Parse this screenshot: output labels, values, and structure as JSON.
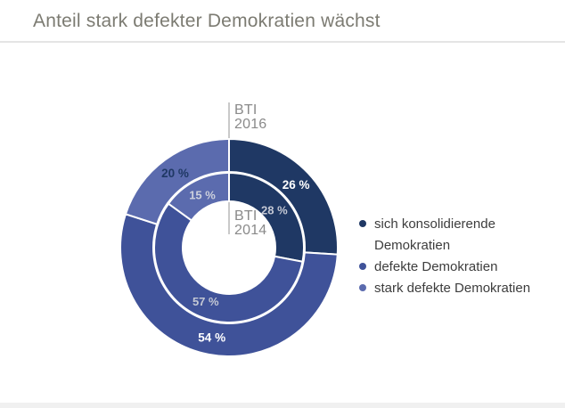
{
  "title": "Anteil stark defekter Demokratien wächst",
  "chart_data": {
    "type": "pie",
    "subtype": "double-donut",
    "title": "Anteil stark defekter Demokratien wächst",
    "categories": [
      "sich konsolidierende Demokratien",
      "defekte Demokratien",
      "stark defekte Demokratien"
    ],
    "colors": [
      "#1f3864",
      "#3f5299",
      "#5b6bae"
    ],
    "start_angle_deg": 0,
    "clockwise": true,
    "rings": [
      {
        "name": "BTI 2016",
        "position": "outer",
        "values": [
          26,
          54,
          20
        ],
        "labels": [
          "26 %",
          "54 %",
          "20 %"
        ],
        "label_colors": [
          "#ffffff",
          "#ffffff",
          "#1f3864"
        ],
        "axis_label_lines": [
          "BTI",
          "2016"
        ]
      },
      {
        "name": "BTI 2014",
        "position": "inner",
        "values": [
          28,
          57,
          15
        ],
        "labels": [
          "28 %",
          "57 %",
          "15 %"
        ],
        "label_colors": [
          "#c4c8d4",
          "#c4c8d4",
          "#cdd1dd"
        ],
        "axis_label_lines": [
          "BTI",
          "2014"
        ]
      }
    ],
    "legend_position": "right"
  },
  "legend": {
    "items": [
      {
        "label": "sich konsolidierende Demokratien",
        "color": "#1f3864"
      },
      {
        "label": "defekte Demokratien",
        "color": "#3f5299"
      },
      {
        "label": "stark defekte Demokratien",
        "color": "#5b6bae"
      }
    ]
  }
}
